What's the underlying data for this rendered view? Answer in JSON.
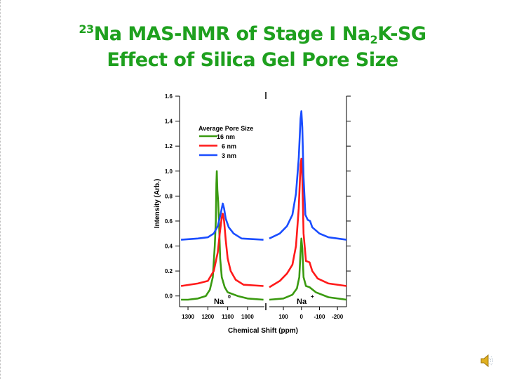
{
  "slide": {
    "title_sup": "23",
    "title_main": "Na MAS-NMR of Stage I Na",
    "title_sub": "2",
    "title_end": "K-SG",
    "subtitle": "Effect of Silica Gel Pore Size"
  },
  "chart_data": {
    "type": "line",
    "xlabel": "Chemical Shift (ppm)",
    "ylabel": "Intensity (Arb.)",
    "ylim": [
      -0.086,
      1.6
    ],
    "yticks": [
      0.0,
      0.2,
      0.4,
      0.6,
      0.8,
      1.0,
      1.2,
      1.4,
      1.6
    ],
    "ytick_labels": [
      "0.0",
      "0.2",
      "0.4",
      "0.6",
      "0.8",
      "1.0",
      "1.2",
      "1.4",
      "1.6"
    ],
    "x_axis": "broken, reversed",
    "panels": [
      {
        "xlim": [
          1339,
          915
        ],
        "xticks": [
          1300,
          1200,
          1100,
          1000
        ],
        "xtick_labels": [
          "1300",
          "1200",
          "1100",
          "1000"
        ],
        "annotation": "Na",
        "annotation_sup": "0"
      },
      {
        "xlim": [
          178,
          -250
        ],
        "xticks": [
          100,
          0,
          -100,
          -200
        ],
        "xtick_labels": [
          "100",
          "0",
          "-100",
          "-200"
        ],
        "annotation": "Na",
        "annotation_sup": "+"
      }
    ],
    "legend_title": "Average Pore Size",
    "legend_position": "top-left",
    "grid": false,
    "series": [
      {
        "name": "16 nm",
        "color": "#3a9a10",
        "panels": [
          [
            [
              1335,
              -0.03
            ],
            [
              1300,
              -0.03
            ],
            [
              1250,
              -0.02
            ],
            [
              1210,
              0.0
            ],
            [
              1190,
              0.05
            ],
            [
              1175,
              0.15
            ],
            [
              1165,
              0.4
            ],
            [
              1160,
              0.6
            ],
            [
              1157,
              0.9
            ],
            [
              1155,
              1.0
            ],
            [
              1152,
              0.85
            ],
            [
              1148,
              0.75
            ],
            [
              1143,
              0.55
            ],
            [
              1138,
              0.3
            ],
            [
              1130,
              0.15
            ],
            [
              1115,
              0.07
            ],
            [
              1100,
              0.03
            ],
            [
              1050,
              0.0
            ],
            [
              1000,
              -0.02
            ],
            [
              920,
              -0.03
            ]
          ],
          [
            [
              178,
              -0.03
            ],
            [
              100,
              -0.02
            ],
            [
              50,
              0.01
            ],
            [
              25,
              0.06
            ],
            [
              12,
              0.15
            ],
            [
              5,
              0.35
            ],
            [
              0,
              0.46
            ],
            [
              -5,
              0.38
            ],
            [
              -12,
              0.15
            ],
            [
              -25,
              0.08
            ],
            [
              -45,
              0.07
            ],
            [
              -80,
              0.03
            ],
            [
              -150,
              -0.01
            ],
            [
              -250,
              -0.03
            ]
          ]
        ]
      },
      {
        "name": "6 nm",
        "color": "#ff1a1a",
        "panels": [
          [
            [
              1335,
              0.08
            ],
            [
              1250,
              0.1
            ],
            [
              1200,
              0.12
            ],
            [
              1170,
              0.2
            ],
            [
              1150,
              0.35
            ],
            [
              1140,
              0.5
            ],
            [
              1130,
              0.63
            ],
            [
              1125,
              0.66
            ],
            [
              1118,
              0.6
            ],
            [
              1110,
              0.45
            ],
            [
              1100,
              0.3
            ],
            [
              1085,
              0.2
            ],
            [
              1060,
              0.13
            ],
            [
              1020,
              0.09
            ],
            [
              920,
              0.08
            ]
          ],
          [
            [
              178,
              0.07
            ],
            [
              120,
              0.12
            ],
            [
              80,
              0.18
            ],
            [
              50,
              0.25
            ],
            [
              30,
              0.4
            ],
            [
              15,
              0.7
            ],
            [
              5,
              1.05
            ],
            [
              0,
              1.1
            ],
            [
              -5,
              0.95
            ],
            [
              -12,
              0.5
            ],
            [
              -25,
              0.28
            ],
            [
              -45,
              0.27
            ],
            [
              -60,
              0.2
            ],
            [
              -90,
              0.14
            ],
            [
              -150,
              0.1
            ],
            [
              -250,
              0.08
            ]
          ]
        ]
      },
      {
        "name": "3 nm",
        "color": "#1a4dff",
        "panels": [
          [
            [
              1335,
              0.45
            ],
            [
              1250,
              0.46
            ],
            [
              1200,
              0.47
            ],
            [
              1170,
              0.5
            ],
            [
              1150,
              0.56
            ],
            [
              1135,
              0.66
            ],
            [
              1125,
              0.74
            ],
            [
              1118,
              0.7
            ],
            [
              1110,
              0.62
            ],
            [
              1095,
              0.55
            ],
            [
              1070,
              0.5
            ],
            [
              1030,
              0.46
            ],
            [
              920,
              0.45
            ]
          ],
          [
            [
              178,
              0.46
            ],
            [
              120,
              0.5
            ],
            [
              80,
              0.56
            ],
            [
              50,
              0.65
            ],
            [
              30,
              0.82
            ],
            [
              15,
              1.1
            ],
            [
              5,
              1.42
            ],
            [
              0,
              1.48
            ],
            [
              -5,
              1.35
            ],
            [
              -12,
              0.95
            ],
            [
              -22,
              0.65
            ],
            [
              -35,
              0.61
            ],
            [
              -48,
              0.6
            ],
            [
              -60,
              0.55
            ],
            [
              -100,
              0.5
            ],
            [
              -150,
              0.47
            ],
            [
              -250,
              0.45
            ]
          ]
        ]
      }
    ]
  },
  "icons": {
    "speaker": "speaker-icon"
  }
}
